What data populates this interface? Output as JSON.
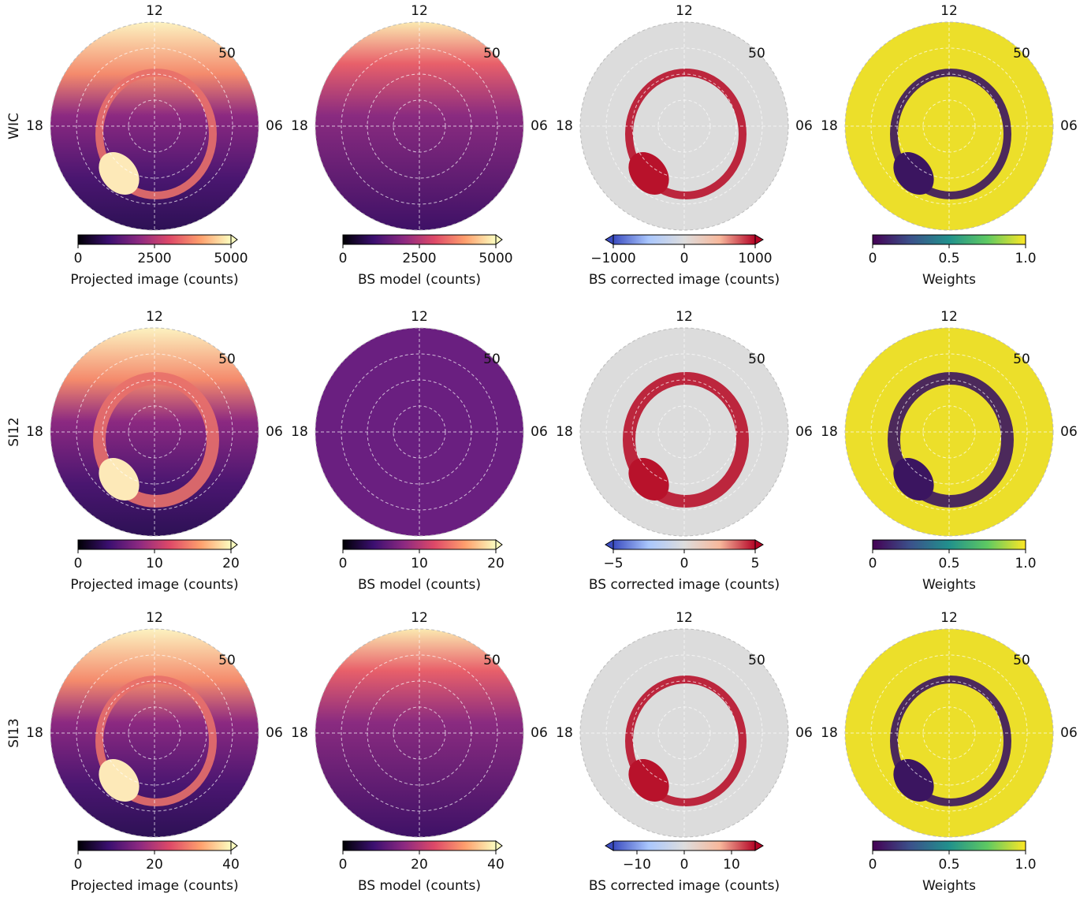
{
  "clock_labels": {
    "top": "12",
    "left": "18",
    "right": "06"
  },
  "latitude_label": "50",
  "rows": [
    {
      "label": "WIC",
      "panels": [
        {
          "colorbar_label": "Projected image (counts)",
          "lim": [
            0,
            5000
          ],
          "ticks": [
            0,
            2500,
            5000
          ]
        },
        {
          "colorbar_label": "BS model (counts)",
          "lim": [
            0,
            5000
          ],
          "ticks": [
            0,
            2500,
            5000
          ]
        },
        {
          "colorbar_label": "BS corrected image (counts)",
          "lim": [
            -1000,
            1000
          ],
          "ticks": [
            {
              "value": -1000,
              "label": "−1000"
            },
            0,
            1000
          ]
        },
        {
          "colorbar_label": "Weights",
          "lim": [
            0,
            1
          ],
          "ticks": [
            0,
            0.5,
            {
              "value": 1,
              "label": "1.0"
            }
          ]
        }
      ]
    },
    {
      "label": "SI12",
      "panels": [
        {
          "colorbar_label": "Projected image (counts)",
          "lim": [
            0,
            20
          ],
          "ticks": [
            0,
            10,
            20
          ]
        },
        {
          "colorbar_label": "BS model (counts)",
          "lim": [
            0,
            20
          ],
          "ticks": [
            0,
            10,
            20
          ]
        },
        {
          "colorbar_label": "BS corrected image (counts)",
          "lim": [
            -5,
            5
          ],
          "ticks": [
            {
              "value": -5,
              "label": "−5"
            },
            0,
            5
          ]
        },
        {
          "colorbar_label": "Weights",
          "lim": [
            0,
            1
          ],
          "ticks": [
            0,
            0.5,
            {
              "value": 1,
              "label": "1.0"
            }
          ]
        }
      ]
    },
    {
      "label": "SI13",
      "panels": [
        {
          "colorbar_label": "Projected image (counts)",
          "lim": [
            0,
            40
          ],
          "ticks": [
            0,
            20,
            40
          ]
        },
        {
          "colorbar_label": "BS model (counts)",
          "lim": [
            0,
            40
          ],
          "ticks": [
            0,
            20,
            40
          ]
        },
        {
          "colorbar_label": "BS corrected image (counts)",
          "lim": [
            -15,
            15
          ],
          "ticks": [
            {
              "value": -10,
              "label": "−10"
            },
            0,
            10
          ]
        },
        {
          "colorbar_label": "Weights",
          "lim": [
            0,
            1
          ],
          "ticks": [
            0,
            0.5,
            {
              "value": 1,
              "label": "1.0"
            }
          ]
        }
      ]
    }
  ]
}
